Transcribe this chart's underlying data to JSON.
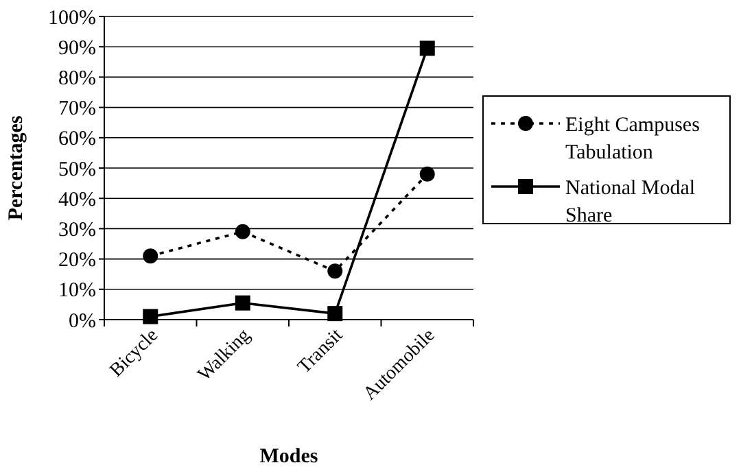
{
  "chart_data": {
    "type": "line",
    "xlabel": "Modes",
    "ylabel": "Percentages",
    "categories": [
      "Bicycle",
      "Walking",
      "Transit",
      "Automobile"
    ],
    "series": [
      {
        "name": "Eight Campuses Tabulation",
        "color": "#000000",
        "values": [
          21,
          29,
          16,
          48
        ],
        "marker": "circle",
        "line_style": "dotted"
      },
      {
        "name": "National Modal Share",
        "color": "#000000",
        "values": [
          1,
          5.5,
          2,
          89.5
        ],
        "marker": "square",
        "line_style": "solid"
      }
    ],
    "ylim": [
      0,
      100
    ],
    "yticks": [
      {
        "value": 0,
        "label": "0%"
      },
      {
        "value": 10,
        "label": "10%"
      },
      {
        "value": 20,
        "label": "20%"
      },
      {
        "value": 30,
        "label": "30%"
      },
      {
        "value": 40,
        "label": "40%"
      },
      {
        "value": 50,
        "label": "50%"
      },
      {
        "value": 60,
        "label": "60%"
      },
      {
        "value": 70,
        "label": "70%"
      },
      {
        "value": 80,
        "label": "80%"
      },
      {
        "value": 90,
        "label": "90%"
      },
      {
        "value": 100,
        "label": "100%"
      }
    ],
    "grid": "y",
    "legend": "right"
  }
}
